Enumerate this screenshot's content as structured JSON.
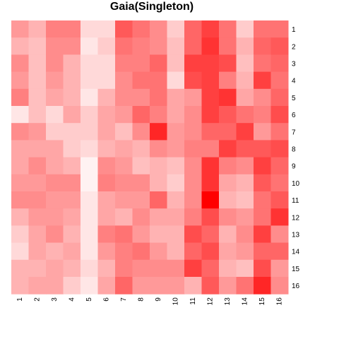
{
  "chart_data": {
    "type": "heatmap",
    "title": "Gaia(Singleton)",
    "xlabel": "",
    "ylabel": "",
    "columns": [
      "1",
      "2",
      "3",
      "4",
      "5",
      "6",
      "7",
      "8",
      "9",
      "10",
      "11",
      "12",
      "13",
      "14",
      "15",
      "16"
    ],
    "rows": [
      "1",
      "2",
      "3",
      "4",
      "5",
      "6",
      "7",
      "8",
      "9",
      "10",
      "11",
      "12",
      "13",
      "14",
      "15",
      "16"
    ],
    "value_scale": "intensity 0 (white) to 1 (pure red)",
    "color_low": "#ffffff",
    "color_high": "#ff0000",
    "values": [
      [
        0.4,
        0.3,
        0.5,
        0.5,
        0.15,
        0.15,
        0.65,
        0.55,
        0.45,
        0.2,
        0.6,
        0.75,
        0.55,
        0.2,
        0.55,
        0.55
      ],
      [
        0.3,
        0.25,
        0.45,
        0.45,
        0.1,
        0.2,
        0.55,
        0.5,
        0.45,
        0.25,
        0.6,
        0.8,
        0.55,
        0.3,
        0.6,
        0.65
      ],
      [
        0.45,
        0.25,
        0.45,
        0.3,
        0.15,
        0.15,
        0.5,
        0.5,
        0.6,
        0.25,
        0.75,
        0.75,
        0.7,
        0.25,
        0.55,
        0.6
      ],
      [
        0.4,
        0.25,
        0.4,
        0.3,
        0.15,
        0.15,
        0.45,
        0.55,
        0.55,
        0.15,
        0.7,
        0.75,
        0.5,
        0.3,
        0.75,
        0.55
      ],
      [
        0.5,
        0.25,
        0.35,
        0.3,
        0.1,
        0.3,
        0.45,
        0.45,
        0.55,
        0.35,
        0.4,
        0.75,
        0.8,
        0.35,
        0.45,
        0.6
      ],
      [
        0.1,
        0.25,
        0.15,
        0.35,
        0.2,
        0.35,
        0.4,
        0.6,
        0.5,
        0.35,
        0.45,
        0.75,
        0.65,
        0.55,
        0.5,
        0.7
      ],
      [
        0.45,
        0.4,
        0.2,
        0.2,
        0.2,
        0.35,
        0.25,
        0.45,
        0.85,
        0.4,
        0.45,
        0.6,
        0.6,
        0.75,
        0.4,
        0.55
      ],
      [
        0.35,
        0.35,
        0.35,
        0.2,
        0.15,
        0.3,
        0.35,
        0.3,
        0.45,
        0.4,
        0.5,
        0.5,
        0.75,
        0.65,
        0.65,
        0.7
      ],
      [
        0.35,
        0.45,
        0.35,
        0.3,
        0.05,
        0.45,
        0.4,
        0.25,
        0.3,
        0.25,
        0.45,
        0.8,
        0.5,
        0.45,
        0.75,
        0.6
      ],
      [
        0.4,
        0.4,
        0.45,
        0.45,
        0.05,
        0.5,
        0.45,
        0.45,
        0.3,
        0.2,
        0.45,
        0.8,
        0.35,
        0.3,
        0.65,
        0.55
      ],
      [
        0.45,
        0.45,
        0.4,
        0.4,
        0.1,
        0.35,
        0.4,
        0.4,
        0.6,
        0.3,
        0.45,
        1.0,
        0.3,
        0.25,
        0.55,
        0.65
      ],
      [
        0.3,
        0.4,
        0.4,
        0.35,
        0.1,
        0.35,
        0.3,
        0.45,
        0.35,
        0.35,
        0.5,
        0.7,
        0.45,
        0.4,
        0.55,
        0.8
      ],
      [
        0.2,
        0.35,
        0.45,
        0.3,
        0.1,
        0.5,
        0.55,
        0.4,
        0.3,
        0.3,
        0.7,
        0.6,
        0.3,
        0.45,
        0.75,
        0.45
      ],
      [
        0.15,
        0.35,
        0.3,
        0.35,
        0.1,
        0.4,
        0.5,
        0.55,
        0.4,
        0.3,
        0.6,
        0.7,
        0.35,
        0.4,
        0.6,
        0.6
      ],
      [
        0.3,
        0.3,
        0.35,
        0.3,
        0.15,
        0.3,
        0.5,
        0.45,
        0.45,
        0.45,
        0.75,
        0.6,
        0.3,
        0.25,
        0.7,
        0.4
      ],
      [
        0.3,
        0.35,
        0.35,
        0.2,
        0.1,
        0.35,
        0.6,
        0.4,
        0.4,
        0.4,
        0.3,
        0.65,
        0.4,
        0.55,
        0.85,
        0.45
      ]
    ]
  }
}
